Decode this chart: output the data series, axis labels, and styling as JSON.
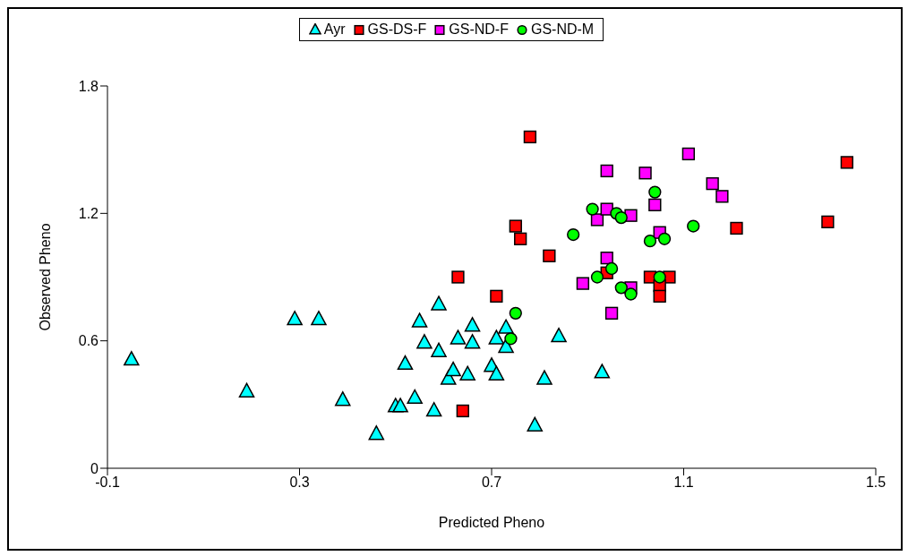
{
  "chart_data": {
    "type": "scatter",
    "xlabel": "Predicted Pheno",
    "ylabel": "Observed Pheno",
    "xlim": [
      -0.1,
      1.5
    ],
    "xticks": [
      -0.1,
      0.3,
      0.7,
      1.1,
      1.5
    ],
    "ylim": [
      0,
      1.8
    ],
    "yticks": [
      0,
      0.6,
      1.2,
      1.8
    ],
    "grid": false,
    "legend": "top",
    "series": [
      {
        "name": "Ayr",
        "color": "#00ffff",
        "marker": "triangle",
        "x": [
          -0.05,
          0.19,
          0.29,
          0.34,
          0.39,
          0.46,
          0.5,
          0.51,
          0.52,
          0.54,
          0.55,
          0.56,
          0.58,
          0.59,
          0.59,
          0.61,
          0.62,
          0.63,
          0.65,
          0.66,
          0.66,
          0.7,
          0.71,
          0.71,
          0.73,
          0.73,
          0.79,
          0.81,
          0.84,
          0.93
        ],
        "values": [
          0.51,
          0.36,
          0.7,
          0.7,
          0.32,
          0.16,
          0.29,
          0.29,
          0.49,
          0.33,
          0.69,
          0.59,
          0.27,
          0.55,
          0.77,
          0.42,
          0.46,
          0.61,
          0.44,
          0.67,
          0.59,
          0.48,
          0.61,
          0.44,
          0.57,
          0.66,
          0.2,
          0.42,
          0.62,
          0.45
        ]
      },
      {
        "name": "GS-DS-F",
        "color": "#ff0000",
        "marker": "square",
        "x": [
          0.78,
          0.75,
          0.76,
          0.82,
          0.63,
          0.71,
          0.64,
          0.94,
          1.03,
          1.07,
          1.05,
          1.05,
          1.21,
          1.4,
          1.44
        ],
        "values": [
          1.56,
          1.14,
          1.08,
          1.0,
          0.9,
          0.81,
          0.27,
          0.92,
          0.9,
          0.9,
          0.86,
          0.81,
          1.13,
          1.16,
          1.44
        ]
      },
      {
        "name": "GS-ND-F",
        "color": "#ff00ff",
        "marker": "square",
        "x": [
          0.94,
          1.02,
          1.11,
          1.16,
          1.18,
          0.92,
          0.94,
          0.99,
          1.04,
          1.05,
          0.94,
          0.89,
          0.95,
          0.99
        ],
        "values": [
          1.4,
          1.39,
          1.48,
          1.34,
          1.28,
          1.17,
          1.22,
          1.19,
          1.24,
          1.11,
          0.99,
          0.87,
          0.73,
          0.85
        ]
      },
      {
        "name": "GS-ND-M",
        "color": "#00ff00",
        "marker": "circle",
        "x": [
          0.75,
          0.74,
          0.87,
          0.91,
          0.96,
          0.97,
          1.04,
          1.03,
          1.06,
          1.12,
          0.92,
          0.95,
          0.97,
          0.99,
          1.05
        ],
        "values": [
          0.73,
          0.61,
          1.1,
          1.22,
          1.2,
          1.18,
          1.3,
          1.07,
          1.08,
          1.14,
          0.9,
          0.94,
          0.85,
          0.82,
          0.9
        ]
      }
    ]
  }
}
